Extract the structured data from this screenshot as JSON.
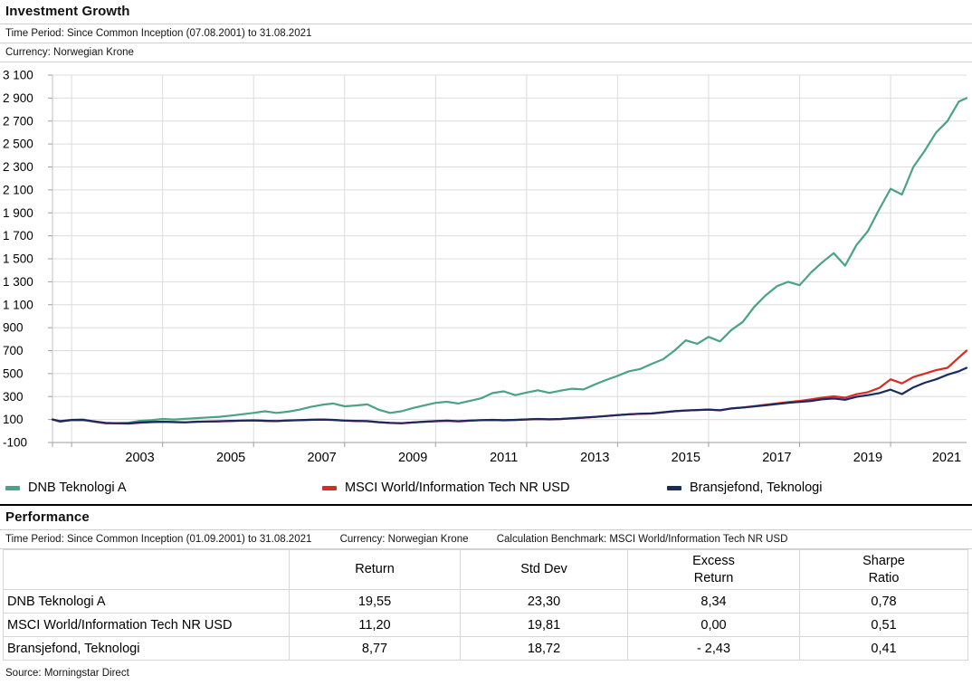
{
  "investment_growth": {
    "title": "Investment Growth",
    "time_period": "Time Period: Since Common Inception (07.08.2001) to 31.08.2021",
    "currency": "Currency: Norwegian Krone"
  },
  "chart_data": {
    "type": "line",
    "title": "Investment Growth",
    "currency": "Norwegian Krone",
    "x_range": [
      2001.58,
      2021.67
    ],
    "ylim": [
      -100,
      3100
    ],
    "grid": true,
    "legend_position": "bottom",
    "y_ticks": [
      {
        "v": 3100,
        "label": "3 100"
      },
      {
        "v": 2900,
        "label": "2 900"
      },
      {
        "v": 2700,
        "label": "2 700"
      },
      {
        "v": 2500,
        "label": "2 500"
      },
      {
        "v": 2300,
        "label": "2 300"
      },
      {
        "v": 2100,
        "label": "2 100"
      },
      {
        "v": 1900,
        "label": "1 900"
      },
      {
        "v": 1700,
        "label": "1 700"
      },
      {
        "v": 1500,
        "label": "1 500"
      },
      {
        "v": 1300,
        "label": "1 300"
      },
      {
        "v": 1100,
        "label": "1 100"
      },
      {
        "v": 900,
        "label": "900"
      },
      {
        "v": 700,
        "label": "700"
      },
      {
        "v": 500,
        "label": "500"
      },
      {
        "v": 300,
        "label": "300"
      },
      {
        "v": 100,
        "label": "100"
      },
      {
        "v": -100,
        "label": "-100"
      }
    ],
    "x_ticks": [
      {
        "year": 2003.5,
        "label": "2003"
      },
      {
        "year": 2005.5,
        "label": "2005"
      },
      {
        "year": 2007.5,
        "label": "2007"
      },
      {
        "year": 2009.5,
        "label": "2009"
      },
      {
        "year": 2011.5,
        "label": "2011"
      },
      {
        "year": 2013.5,
        "label": "2013"
      },
      {
        "year": 2015.5,
        "label": "2015"
      },
      {
        "year": 2017.5,
        "label": "2017"
      },
      {
        "year": 2019.5,
        "label": "2019"
      },
      {
        "year": 2021.5,
        "label": "2021"
      }
    ],
    "x_gridline_years": [
      2002,
      2004,
      2006,
      2008,
      2010,
      2012,
      2014,
      2016,
      2018,
      2020
    ],
    "x": [
      2001.58,
      2001.75,
      2002.0,
      2002.25,
      2002.5,
      2002.75,
      2003.0,
      2003.25,
      2003.5,
      2003.75,
      2004.0,
      2004.25,
      2004.5,
      2004.75,
      2005.0,
      2005.25,
      2005.5,
      2005.75,
      2006.0,
      2006.25,
      2006.5,
      2006.75,
      2007.0,
      2007.25,
      2007.5,
      2007.75,
      2008.0,
      2008.25,
      2008.5,
      2008.75,
      2009.0,
      2009.25,
      2009.5,
      2009.75,
      2010.0,
      2010.25,
      2010.5,
      2010.75,
      2011.0,
      2011.25,
      2011.5,
      2011.75,
      2012.0,
      2012.25,
      2012.5,
      2012.75,
      2013.0,
      2013.25,
      2013.5,
      2013.75,
      2014.0,
      2014.25,
      2014.5,
      2014.75,
      2015.0,
      2015.25,
      2015.5,
      2015.75,
      2016.0,
      2016.25,
      2016.5,
      2016.75,
      2017.0,
      2017.25,
      2017.5,
      2017.75,
      2018.0,
      2018.25,
      2018.5,
      2018.75,
      2019.0,
      2019.25,
      2019.5,
      2019.75,
      2020.0,
      2020.25,
      2020.5,
      2020.75,
      2021.0,
      2021.25,
      2021.5,
      2021.67
    ],
    "series": [
      {
        "name": "DNB Teknologi A",
        "color": "#4aa287",
        "values": [
          100,
          80,
          97,
          100,
          80,
          67,
          69,
          72,
          88,
          94,
          105,
          100,
          106,
          112,
          118,
          124,
          134,
          146,
          158,
          172,
          158,
          168,
          185,
          210,
          228,
          240,
          215,
          222,
          232,
          185,
          158,
          172,
          200,
          222,
          245,
          255,
          240,
          262,
          285,
          330,
          345,
          312,
          335,
          355,
          332,
          352,
          368,
          362,
          405,
          445,
          480,
          520,
          540,
          585,
          625,
          700,
          790,
          760,
          820,
          780,
          880,
          950,
          1080,
          1180,
          1260,
          1300,
          1270,
          1380,
          1470,
          1550,
          1440,
          1620,
          1740,
          1930,
          2110,
          2060,
          2300,
          2440,
          2600,
          2700,
          2870,
          2900
        ]
      },
      {
        "name": "MSCI World/Information Tech NR USD",
        "color": "#d92b21",
        "values": [
          100,
          84,
          95,
          96,
          82,
          68,
          66,
          64,
          72,
          77,
          80,
          77,
          75,
          80,
          82,
          84,
          87,
          90,
          92,
          88,
          86,
          91,
          94,
          97,
          99,
          96,
          90,
          87,
          85,
          76,
          70,
          67,
          74,
          80,
          85,
          89,
          84,
          90,
          94,
          96,
          93,
          96,
          100,
          104,
          101,
          104,
          110,
          116,
          122,
          130,
          138,
          145,
          150,
          152,
          162,
          172,
          178,
          182,
          186,
          180,
          196,
          205,
          216,
          228,
          240,
          252,
          262,
          275,
          290,
          302,
          290,
          320,
          338,
          375,
          450,
          415,
          470,
          500,
          530,
          550,
          640,
          700
        ]
      },
      {
        "name": "Bransjefond, Teknologi",
        "color": "#1b2a5e",
        "values": [
          100,
          86,
          96,
          97,
          84,
          70,
          68,
          66,
          74,
          78,
          81,
          78,
          76,
          81,
          83,
          85,
          88,
          91,
          93,
          89,
          87,
          92,
          95,
          98,
          100,
          97,
          91,
          88,
          86,
          77,
          71,
          68,
          75,
          81,
          86,
          90,
          85,
          91,
          95,
          97,
          94,
          97,
          101,
          105,
          102,
          105,
          111,
          117,
          123,
          131,
          139,
          146,
          151,
          153,
          163,
          173,
          179,
          183,
          187,
          181,
          196,
          204,
          214,
          224,
          235,
          245,
          253,
          262,
          276,
          283,
          272,
          298,
          312,
          330,
          360,
          322,
          380,
          420,
          450,
          490,
          520,
          550
        ]
      }
    ]
  },
  "performance": {
    "title": "Performance",
    "meta": {
      "time_period": "Time Period: Since Common Inception (01.09.2001) to 31.08.2021",
      "currency": "Currency: Norwegian Krone",
      "calculation_benchmark": "Calculation Benchmark: MSCI World/Information Tech NR USD"
    },
    "table": {
      "columns": [
        "",
        "Return",
        "Std Dev",
        "Excess\nReturn",
        "Sharpe\nRatio"
      ],
      "rows": [
        [
          "DNB Teknologi A",
          "19,55",
          "23,30",
          "8,34",
          "0,78"
        ],
        [
          "MSCI World/Information Tech NR USD",
          "11,20",
          "19,81",
          "0,00",
          "0,51"
        ],
        [
          "Bransjefond, Teknologi",
          "8,77",
          "18,72",
          "- 2,43",
          "0,41"
        ]
      ]
    }
  },
  "source": "Source: Morningstar Direct"
}
